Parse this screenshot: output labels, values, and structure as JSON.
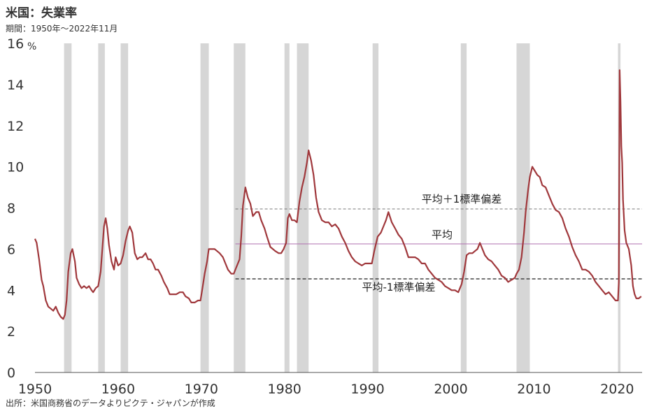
{
  "header": {
    "title": "米国：失業率",
    "subtitle": "期間：1950年～2022年11月"
  },
  "footer": {
    "source": "出所：米国商務省のデータよりピクテ・ジャパンが作成"
  },
  "chart_data": {
    "type": "line",
    "title": "米国：失業率",
    "ylabel": "%",
    "xlim": [
      1950,
      2023
    ],
    "ylim": [
      0,
      16
    ],
    "x_ticks": [
      1950,
      1960,
      1970,
      1980,
      1990,
      2000,
      2010,
      2020
    ],
    "y_ticks": [
      0,
      2,
      4,
      6,
      8,
      10,
      12,
      14,
      16
    ],
    "series": [
      {
        "color": "#a0383c",
        "points": [
          [
            1950.0,
            6.5
          ],
          [
            1950.2,
            6.3
          ],
          [
            1950.5,
            5.5
          ],
          [
            1950.8,
            4.5
          ],
          [
            1951.0,
            4.2
          ],
          [
            1951.3,
            3.5
          ],
          [
            1951.6,
            3.2
          ],
          [
            1951.9,
            3.1
          ],
          [
            1952.2,
            3.0
          ],
          [
            1952.5,
            3.2
          ],
          [
            1952.8,
            2.9
          ],
          [
            1953.1,
            2.7
          ],
          [
            1953.4,
            2.6
          ],
          [
            1953.6,
            2.8
          ],
          [
            1953.8,
            3.5
          ],
          [
            1954.0,
            4.9
          ],
          [
            1954.3,
            5.8
          ],
          [
            1954.5,
            6.0
          ],
          [
            1954.8,
            5.4
          ],
          [
            1955.0,
            4.6
          ],
          [
            1955.3,
            4.3
          ],
          [
            1955.6,
            4.1
          ],
          [
            1955.9,
            4.2
          ],
          [
            1956.2,
            4.1
          ],
          [
            1956.5,
            4.2
          ],
          [
            1956.8,
            4.0
          ],
          [
            1957.0,
            3.9
          ],
          [
            1957.3,
            4.1
          ],
          [
            1957.6,
            4.2
          ],
          [
            1957.9,
            4.9
          ],
          [
            1958.1,
            6.0
          ],
          [
            1958.3,
            7.1
          ],
          [
            1958.5,
            7.5
          ],
          [
            1958.7,
            7.0
          ],
          [
            1958.9,
            6.2
          ],
          [
            1959.2,
            5.4
          ],
          [
            1959.5,
            5.0
          ],
          [
            1959.7,
            5.6
          ],
          [
            1960.0,
            5.2
          ],
          [
            1960.3,
            5.3
          ],
          [
            1960.6,
            5.7
          ],
          [
            1960.9,
            6.4
          ],
          [
            1961.2,
            6.9
          ],
          [
            1961.4,
            7.1
          ],
          [
            1961.7,
            6.8
          ],
          [
            1962.0,
            5.8
          ],
          [
            1962.3,
            5.5
          ],
          [
            1962.6,
            5.6
          ],
          [
            1962.9,
            5.6
          ],
          [
            1963.3,
            5.8
          ],
          [
            1963.6,
            5.5
          ],
          [
            1963.9,
            5.5
          ],
          [
            1964.2,
            5.3
          ],
          [
            1964.5,
            5.0
          ],
          [
            1964.8,
            5.0
          ],
          [
            1965.2,
            4.7
          ],
          [
            1965.5,
            4.4
          ],
          [
            1965.9,
            4.1
          ],
          [
            1966.2,
            3.8
          ],
          [
            1966.6,
            3.8
          ],
          [
            1967.0,
            3.8
          ],
          [
            1967.4,
            3.9
          ],
          [
            1967.8,
            3.9
          ],
          [
            1968.1,
            3.7
          ],
          [
            1968.5,
            3.6
          ],
          [
            1968.8,
            3.4
          ],
          [
            1969.2,
            3.4
          ],
          [
            1969.6,
            3.5
          ],
          [
            1969.9,
            3.5
          ],
          [
            1970.1,
            4.0
          ],
          [
            1970.4,
            4.8
          ],
          [
            1970.7,
            5.4
          ],
          [
            1970.9,
            6.0
          ],
          [
            1971.2,
            6.0
          ],
          [
            1971.6,
            6.0
          ],
          [
            1971.9,
            5.9
          ],
          [
            1972.2,
            5.8
          ],
          [
            1972.6,
            5.6
          ],
          [
            1972.9,
            5.3
          ],
          [
            1973.2,
            5.0
          ],
          [
            1973.6,
            4.8
          ],
          [
            1973.9,
            4.8
          ],
          [
            1974.2,
            5.1
          ],
          [
            1974.6,
            5.5
          ],
          [
            1974.8,
            6.6
          ],
          [
            1975.0,
            8.1
          ],
          [
            1975.3,
            9.0
          ],
          [
            1975.6,
            8.5
          ],
          [
            1975.9,
            8.2
          ],
          [
            1976.2,
            7.6
          ],
          [
            1976.6,
            7.8
          ],
          [
            1976.9,
            7.8
          ],
          [
            1977.2,
            7.4
          ],
          [
            1977.6,
            7.0
          ],
          [
            1977.9,
            6.6
          ],
          [
            1978.3,
            6.1
          ],
          [
            1978.6,
            6.0
          ],
          [
            1978.9,
            5.9
          ],
          [
            1979.3,
            5.8
          ],
          [
            1979.6,
            5.8
          ],
          [
            1979.9,
            6.0
          ],
          [
            1980.2,
            6.3
          ],
          [
            1980.4,
            7.5
          ],
          [
            1980.6,
            7.7
          ],
          [
            1980.9,
            7.4
          ],
          [
            1981.2,
            7.4
          ],
          [
            1981.5,
            7.3
          ],
          [
            1981.8,
            8.3
          ],
          [
            1982.1,
            9.0
          ],
          [
            1982.4,
            9.5
          ],
          [
            1982.7,
            10.2
          ],
          [
            1982.9,
            10.8
          ],
          [
            1983.2,
            10.3
          ],
          [
            1983.5,
            9.6
          ],
          [
            1983.8,
            8.5
          ],
          [
            1984.1,
            7.8
          ],
          [
            1984.5,
            7.4
          ],
          [
            1984.9,
            7.3
          ],
          [
            1985.3,
            7.3
          ],
          [
            1985.7,
            7.1
          ],
          [
            1986.1,
            7.2
          ],
          [
            1986.5,
            7.0
          ],
          [
            1986.9,
            6.6
          ],
          [
            1987.3,
            6.3
          ],
          [
            1987.7,
            5.9
          ],
          [
            1988.1,
            5.6
          ],
          [
            1988.5,
            5.4
          ],
          [
            1988.9,
            5.3
          ],
          [
            1989.3,
            5.2
          ],
          [
            1989.7,
            5.3
          ],
          [
            1990.1,
            5.3
          ],
          [
            1990.5,
            5.3
          ],
          [
            1990.8,
            5.9
          ],
          [
            1991.2,
            6.6
          ],
          [
            1991.6,
            6.8
          ],
          [
            1991.9,
            7.1
          ],
          [
            1992.2,
            7.4
          ],
          [
            1992.5,
            7.8
          ],
          [
            1992.9,
            7.3
          ],
          [
            1993.3,
            7.0
          ],
          [
            1993.7,
            6.7
          ],
          [
            1994.1,
            6.5
          ],
          [
            1994.5,
            6.1
          ],
          [
            1994.9,
            5.6
          ],
          [
            1995.3,
            5.6
          ],
          [
            1995.7,
            5.6
          ],
          [
            1996.1,
            5.5
          ],
          [
            1996.5,
            5.3
          ],
          [
            1996.9,
            5.3
          ],
          [
            1997.3,
            5.0
          ],
          [
            1997.7,
            4.8
          ],
          [
            1998.1,
            4.6
          ],
          [
            1998.5,
            4.5
          ],
          [
            1998.9,
            4.4
          ],
          [
            1999.3,
            4.2
          ],
          [
            1999.7,
            4.1
          ],
          [
            2000.1,
            4.0
          ],
          [
            2000.5,
            4.0
          ],
          [
            2000.9,
            3.9
          ],
          [
            2001.3,
            4.3
          ],
          [
            2001.6,
            4.9
          ],
          [
            2001.9,
            5.7
          ],
          [
            2002.2,
            5.8
          ],
          [
            2002.6,
            5.8
          ],
          [
            2002.9,
            5.9
          ],
          [
            2003.2,
            6.0
          ],
          [
            2003.5,
            6.3
          ],
          [
            2003.8,
            6.0
          ],
          [
            2004.1,
            5.7
          ],
          [
            2004.5,
            5.5
          ],
          [
            2004.9,
            5.4
          ],
          [
            2005.3,
            5.2
          ],
          [
            2005.7,
            5.0
          ],
          [
            2006.1,
            4.7
          ],
          [
            2006.5,
            4.6
          ],
          [
            2006.9,
            4.4
          ],
          [
            2007.3,
            4.5
          ],
          [
            2007.7,
            4.6
          ],
          [
            2007.9,
            4.8
          ],
          [
            2008.2,
            5.0
          ],
          [
            2008.5,
            5.6
          ],
          [
            2008.8,
            6.8
          ],
          [
            2009.0,
            7.8
          ],
          [
            2009.3,
            8.9
          ],
          [
            2009.5,
            9.5
          ],
          [
            2009.8,
            10.0
          ],
          [
            2010.1,
            9.8
          ],
          [
            2010.4,
            9.6
          ],
          [
            2010.7,
            9.5
          ],
          [
            2011.0,
            9.1
          ],
          [
            2011.4,
            9.0
          ],
          [
            2011.8,
            8.6
          ],
          [
            2012.2,
            8.2
          ],
          [
            2012.6,
            7.9
          ],
          [
            2013.0,
            7.8
          ],
          [
            2013.4,
            7.5
          ],
          [
            2013.8,
            7.0
          ],
          [
            2014.2,
            6.6
          ],
          [
            2014.6,
            6.1
          ],
          [
            2015.0,
            5.7
          ],
          [
            2015.4,
            5.4
          ],
          [
            2015.8,
            5.0
          ],
          [
            2016.2,
            5.0
          ],
          [
            2016.6,
            4.9
          ],
          [
            2017.0,
            4.7
          ],
          [
            2017.4,
            4.4
          ],
          [
            2017.8,
            4.2
          ],
          [
            2018.2,
            4.0
          ],
          [
            2018.6,
            3.8
          ],
          [
            2019.0,
            3.9
          ],
          [
            2019.4,
            3.7
          ],
          [
            2019.8,
            3.5
          ],
          [
            2020.1,
            3.5
          ],
          [
            2020.2,
            4.4
          ],
          [
            2020.3,
            14.7
          ],
          [
            2020.4,
            13.2
          ],
          [
            2020.5,
            11.0
          ],
          [
            2020.6,
            10.2
          ],
          [
            2020.7,
            8.4
          ],
          [
            2020.9,
            6.9
          ],
          [
            2021.1,
            6.3
          ],
          [
            2021.4,
            6.0
          ],
          [
            2021.7,
            5.2
          ],
          [
            2021.9,
            4.2
          ],
          [
            2022.1,
            3.8
          ],
          [
            2022.3,
            3.6
          ],
          [
            2022.6,
            3.6
          ],
          [
            2022.9,
            3.7
          ]
        ]
      }
    ],
    "recessions": [
      [
        1953.5,
        1954.4
      ],
      [
        1957.6,
        1958.4
      ],
      [
        1960.3,
        1961.2
      ],
      [
        1969.9,
        1970.9
      ],
      [
        1973.9,
        1975.3
      ],
      [
        1980.0,
        1980.6
      ],
      [
        1981.5,
        1982.9
      ],
      [
        1990.6,
        1991.3
      ],
      [
        2001.2,
        2001.9
      ],
      [
        2007.9,
        2009.5
      ],
      [
        2020.1,
        2020.4
      ]
    ],
    "reference_lines": [
      {
        "label": "平均＋1標準偏差",
        "value": 7.95,
        "x_start": 1972,
        "color": "#777777",
        "style": "dashed"
      },
      {
        "label": "平均",
        "value": 6.25,
        "x_start": 1972,
        "color": "#b06fb0",
        "style": "solid"
      },
      {
        "label": "平均-1標準偏差",
        "value": 4.55,
        "x_start": 1972,
        "color": "#333333",
        "style": "dashed"
      }
    ]
  }
}
